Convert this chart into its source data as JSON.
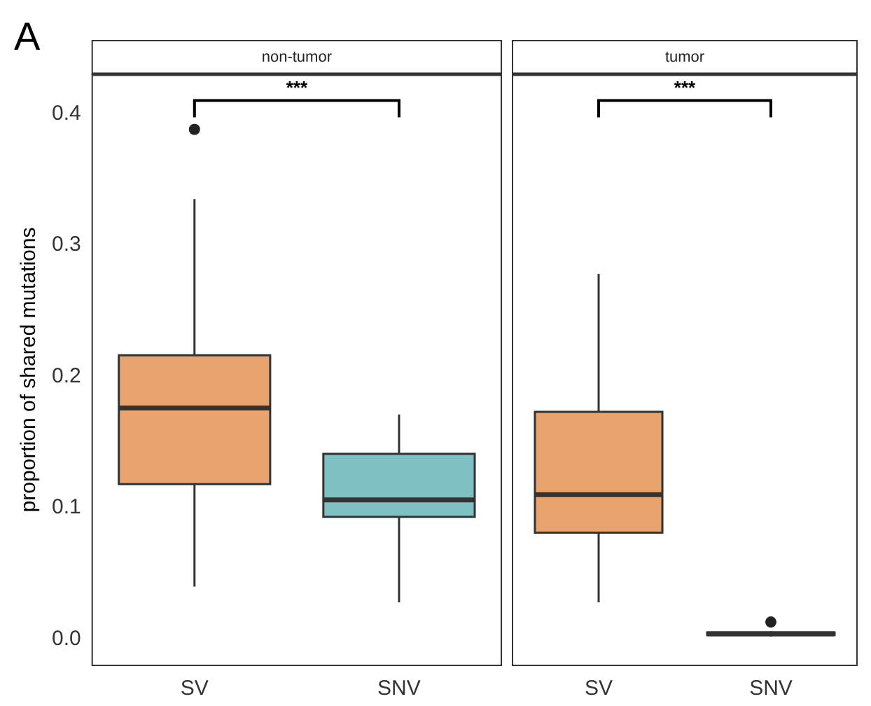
{
  "chart_data": [
    {
      "type": "box",
      "title": "non-tumor",
      "ylabel": "proportion of shared mutations",
      "categories": [
        "SV",
        "SNV"
      ],
      "colors": [
        "#e8a46c",
        "#7fc0c4"
      ],
      "boxes": [
        {
          "low": 0.04,
          "q1": 0.118,
          "median": 0.176,
          "q3": 0.216,
          "high": 0.335,
          "outliers": [
            0.388
          ]
        },
        {
          "low": 0.028,
          "q1": 0.093,
          "median": 0.106,
          "q3": 0.141,
          "high": 0.171
        }
      ],
      "ylim": [
        -0.02,
        0.43
      ],
      "yticks": [
        {
          "value": 0,
          "label": "0.0"
        },
        {
          "value": 0.1,
          "label": "0.1"
        },
        {
          "value": 0.2,
          "label": "0.2"
        },
        {
          "value": 0.3,
          "label": "0.3"
        },
        {
          "value": 0.4,
          "label": "0.4"
        }
      ],
      "annotations": [
        "A",
        "***"
      ]
    },
    {
      "type": "box",
      "title": "tumor",
      "categories": [
        "SV",
        "SNV"
      ],
      "colors": [
        "#e8a46c",
        "#7fc0c4"
      ],
      "boxes": [
        {
          "low": 0.028,
          "q1": 0.081,
          "median": 0.11,
          "q3": 0.173,
          "high": 0.278
        },
        {
          "low": 0.002,
          "q1": 0.003,
          "median": 0.004,
          "q3": 0.005,
          "high": 0.006,
          "outliers": [
            0.013
          ]
        }
      ],
      "ylim": [
        -0.02,
        0.43
      ],
      "tick_labels": "x",
      "annotations": [
        "***"
      ]
    }
  ]
}
